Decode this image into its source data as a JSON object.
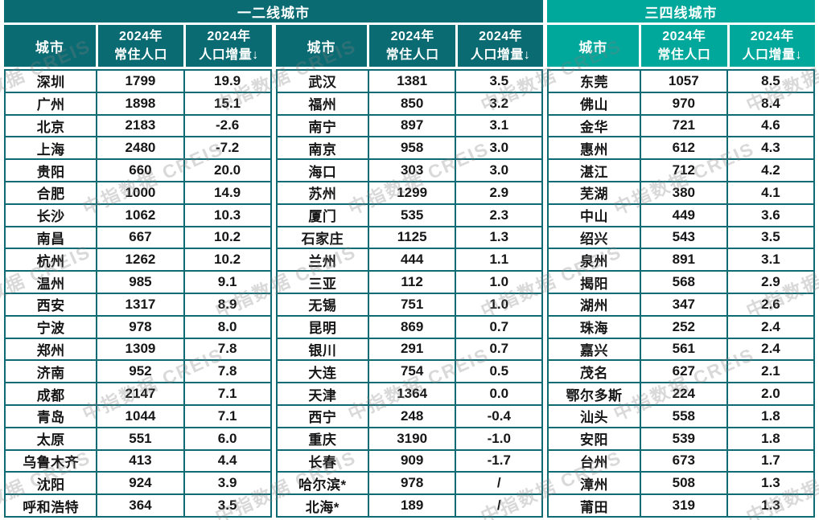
{
  "colors": {
    "dark_teal": "#0A6B73",
    "light_teal": "#00A79B",
    "border_teal": "#0E6B73",
    "header_text": "#FFFFFF",
    "cell_text": "#161616"
  },
  "watermark": {
    "text": "中指数据 CREIS"
  },
  "table": {
    "section_bands": [
      {
        "label": "一二线城市",
        "theme": "dark"
      },
      {
        "label": "三四线城市",
        "theme": "light"
      }
    ],
    "column_headers": [
      {
        "line1": "城市",
        "line2": ""
      },
      {
        "line1": "2024年",
        "line2": "常住人口"
      },
      {
        "line1": "2024年",
        "line2": "人口增量↓"
      }
    ]
  },
  "chart_data": {
    "type": "table",
    "title": "",
    "sections": [
      {
        "title": "一二线城市",
        "group_indexes": [
          0,
          1
        ]
      },
      {
        "title": "三四线城市",
        "group_indexes": [
          2
        ]
      }
    ],
    "columns": [
      "城市",
      "2024年常住人口",
      "2024年人口增量↓"
    ],
    "groups": [
      {
        "section": "一二线城市",
        "theme": "dark",
        "rows": [
          [
            "深圳",
            "1799",
            "19.9"
          ],
          [
            "广州",
            "1898",
            "15.1"
          ],
          [
            "北京",
            "2183",
            "-2.6"
          ],
          [
            "上海",
            "2480",
            "-7.2"
          ],
          [
            "贵阳",
            "660",
            "20.0"
          ],
          [
            "合肥",
            "1000",
            "14.9"
          ],
          [
            "长沙",
            "1062",
            "10.3"
          ],
          [
            "南昌",
            "667",
            "10.2"
          ],
          [
            "杭州",
            "1262",
            "10.2"
          ],
          [
            "温州",
            "985",
            "9.1"
          ],
          [
            "西安",
            "1317",
            "8.9"
          ],
          [
            "宁波",
            "978",
            "8.0"
          ],
          [
            "郑州",
            "1309",
            "7.8"
          ],
          [
            "济南",
            "952",
            "7.8"
          ],
          [
            "成都",
            "2147",
            "7.1"
          ],
          [
            "青岛",
            "1044",
            "7.1"
          ],
          [
            "太原",
            "551",
            "6.0"
          ],
          [
            "乌鲁木齐",
            "413",
            "4.4"
          ],
          [
            "沈阳",
            "924",
            "3.9"
          ],
          [
            "呼和浩特",
            "364",
            "3.5"
          ]
        ]
      },
      {
        "section": "一二线城市",
        "theme": "dark",
        "rows": [
          [
            "武汉",
            "1381",
            "3.5"
          ],
          [
            "福州",
            "850",
            "3.2"
          ],
          [
            "南宁",
            "897",
            "3.1"
          ],
          [
            "南京",
            "958",
            "3.0"
          ],
          [
            "海口",
            "303",
            "3.0"
          ],
          [
            "苏州",
            "1299",
            "2.9"
          ],
          [
            "厦门",
            "535",
            "2.3"
          ],
          [
            "石家庄",
            "1125",
            "1.3"
          ],
          [
            "兰州",
            "444",
            "1.1"
          ],
          [
            "三亚",
            "112",
            "1.0"
          ],
          [
            "无锡",
            "751",
            "1.0"
          ],
          [
            "昆明",
            "869",
            "0.7"
          ],
          [
            "银川",
            "291",
            "0.7"
          ],
          [
            "大连",
            "754",
            "0.5"
          ],
          [
            "天津",
            "1364",
            "0.0"
          ],
          [
            "西宁",
            "248",
            "-0.4"
          ],
          [
            "重庆",
            "3190",
            "-1.0"
          ],
          [
            "长春",
            "909",
            "-1.7"
          ],
          [
            "哈尔滨*",
            "978",
            "/"
          ],
          [
            "北海*",
            "189",
            "/"
          ]
        ]
      },
      {
        "section": "三四线城市",
        "theme": "light",
        "rows": [
          [
            "东莞",
            "1057",
            "8.5"
          ],
          [
            "佛山",
            "970",
            "8.4"
          ],
          [
            "金华",
            "721",
            "4.6"
          ],
          [
            "惠州",
            "612",
            "4.3"
          ],
          [
            "湛江",
            "712",
            "4.2"
          ],
          [
            "芜湖",
            "380",
            "4.1"
          ],
          [
            "中山",
            "449",
            "3.6"
          ],
          [
            "绍兴",
            "543",
            "3.5"
          ],
          [
            "泉州",
            "891",
            "3.1"
          ],
          [
            "揭阳",
            "568",
            "2.9"
          ],
          [
            "湖州",
            "347",
            "2.6"
          ],
          [
            "珠海",
            "252",
            "2.4"
          ],
          [
            "嘉兴",
            "561",
            "2.4"
          ],
          [
            "茂名",
            "627",
            "2.1"
          ],
          [
            "鄂尔多斯",
            "224",
            "2.0"
          ],
          [
            "汕头",
            "558",
            "1.8"
          ],
          [
            "安阳",
            "539",
            "1.8"
          ],
          [
            "台州",
            "673",
            "1.7"
          ],
          [
            "漳州",
            "508",
            "1.3"
          ],
          [
            "莆田",
            "319",
            "1.3"
          ]
        ]
      }
    ]
  }
}
